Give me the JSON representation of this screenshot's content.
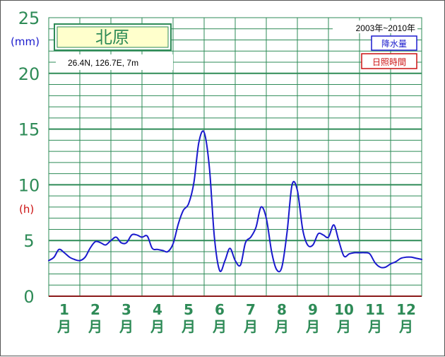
{
  "chart_data": {
    "type": "line",
    "station": "北原",
    "coordinates": "26.4N, 126.7E, 7m",
    "period": "2003年~2010年",
    "left_units": {
      "top": "(mm)",
      "bottom": "(h)"
    },
    "y_ticks": [
      "0",
      "5",
      "10",
      "15",
      "20",
      "25"
    ],
    "ylim": [
      0,
      25
    ],
    "grid": true,
    "month_labels": [
      {
        "num": "1",
        "kanji": "月"
      },
      {
        "num": "2",
        "kanji": "月"
      },
      {
        "num": "3",
        "kanji": "月"
      },
      {
        "num": "4",
        "kanji": "月"
      },
      {
        "num": "5",
        "kanji": "月"
      },
      {
        "num": "6",
        "kanji": "月"
      },
      {
        "num": "7",
        "kanji": "月"
      },
      {
        "num": "8",
        "kanji": "月"
      },
      {
        "num": "9",
        "kanji": "月"
      },
      {
        "num": "10",
        "kanji": "月"
      },
      {
        "num": "11",
        "kanji": "月"
      },
      {
        "num": "12",
        "kanji": "月"
      }
    ],
    "legend": [
      {
        "name": "降水量",
        "color": "#1a1acd"
      },
      {
        "name": "日照時間",
        "color": "#cc1111"
      }
    ],
    "series": [
      {
        "name": "降水量",
        "color": "#1a1acd",
        "x": [
          0,
          0.17,
          0.33,
          0.5,
          0.67,
          0.83,
          1.0,
          1.17,
          1.33,
          1.5,
          1.67,
          1.83,
          2.0,
          2.17,
          2.33,
          2.5,
          2.67,
          2.83,
          3.0,
          3.17,
          3.33,
          3.5,
          3.67,
          3.83,
          4.0,
          4.17,
          4.33,
          4.5,
          4.67,
          4.83,
          5.0,
          5.17,
          5.33,
          5.5,
          5.67,
          5.83,
          6.0,
          6.17,
          6.33,
          6.5,
          6.67,
          6.83,
          7.0,
          7.17,
          7.33,
          7.5,
          7.67,
          7.83,
          8.0,
          8.17,
          8.33,
          8.5,
          8.67,
          8.83,
          9.0,
          9.17,
          9.33,
          9.5,
          9.67,
          9.83,
          10.0,
          10.17,
          10.33,
          10.5,
          10.67,
          10.83,
          11.0,
          11.17,
          11.33,
          11.5,
          11.67,
          11.83,
          12.0
        ],
        "values": [
          3.2,
          3.5,
          4.2,
          3.9,
          3.5,
          3.3,
          3.2,
          3.5,
          4.3,
          4.9,
          4.8,
          4.6,
          5.0,
          5.3,
          4.8,
          4.8,
          5.5,
          5.5,
          5.3,
          5.4,
          4.3,
          4.2,
          4.1,
          4.0,
          4.7,
          6.5,
          7.7,
          8.3,
          10.2,
          13.8,
          14.7,
          11.5,
          5.3,
          2.3,
          3.2,
          4.3,
          3.2,
          2.8,
          4.8,
          5.3,
          6.2,
          8.0,
          7.0,
          4.0,
          2.4,
          2.6,
          5.8,
          10.0,
          9.5,
          6.0,
          4.6,
          4.6,
          5.6,
          5.5,
          5.3,
          6.4,
          5.0,
          3.6,
          3.8,
          3.9,
          3.9,
          3.9,
          3.8,
          3.0,
          2.6,
          2.6,
          2.9,
          3.1,
          3.4,
          3.5,
          3.5,
          3.4,
          3.3
        ]
      }
    ]
  }
}
